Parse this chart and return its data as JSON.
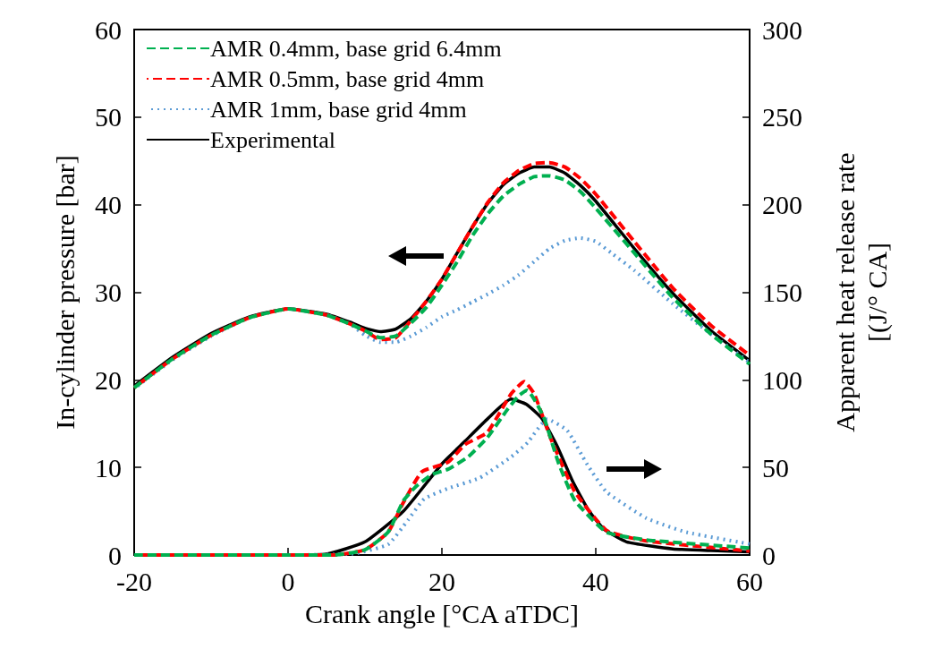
{
  "chart_data": {
    "type": "line",
    "xlabel": "Crank angle [°CA aTDC]",
    "ylabel": "In-cylinder pressure [bar]",
    "y2label": "Apparent heat release rate\n[(J/° CA]",
    "xlim": [
      -20,
      60
    ],
    "xticks": [
      -20,
      0,
      20,
      40,
      60
    ],
    "ylim": [
      0,
      60
    ],
    "yticks": [
      0,
      10,
      20,
      30,
      40,
      50,
      60
    ],
    "y2lim": [
      0,
      300
    ],
    "y2ticks": [
      0,
      50,
      100,
      150,
      200,
      250,
      300
    ],
    "grid": false,
    "legend": "top left",
    "marker": "none",
    "series": [
      {
        "name": "AMR 0.4mm, base grid 6.4mm",
        "color": "#00b050",
        "line_style": "dashed",
        "x": [
          -20,
          -15,
          -10,
          -5,
          0,
          5,
          8,
          10,
          12,
          14,
          16,
          18,
          20,
          22,
          24,
          26,
          28,
          30,
          32,
          34,
          36,
          38,
          40,
          45,
          50,
          55,
          60
        ],
        "values": [
          19.1,
          22.4,
          25.1,
          27.1,
          28.1,
          27.4,
          26.4,
          25.6,
          24.8,
          25,
          26.5,
          28.3,
          30.8,
          33.5,
          36.5,
          39,
          41,
          42.3,
          43.2,
          43.3,
          42.8,
          41.5,
          39.6,
          34.5,
          29.4,
          25.2,
          21.8
        ]
      },
      {
        "name": "AMR 0.5mm, base grid 4mm",
        "color": "#ff0000",
        "line_style": "dashed",
        "x": [
          -20,
          -15,
          -10,
          -5,
          0,
          5,
          8,
          10,
          12,
          14,
          16,
          18,
          20,
          22,
          24,
          26,
          28,
          30,
          32,
          34,
          36,
          38,
          40,
          45,
          50,
          55,
          60
        ],
        "values": [
          19.1,
          22.4,
          25.1,
          27.1,
          28.1,
          27.4,
          26.4,
          25.6,
          24.6,
          24.8,
          26.8,
          29,
          31.5,
          34.5,
          37.5,
          40.3,
          42.5,
          43.9,
          44.7,
          44.8,
          44.3,
          43,
          41.2,
          35.8,
          30.5,
          26.2,
          22.8
        ]
      },
      {
        "name": "AMR 1mm, base grid 4mm",
        "color": "#5b9bd5",
        "line_style": "dotted",
        "x": [
          -20,
          -15,
          -10,
          -5,
          0,
          5,
          8,
          10,
          12,
          14,
          16,
          18,
          20,
          22,
          24,
          26,
          28,
          30,
          32,
          34,
          36,
          38,
          40,
          42,
          45,
          50,
          55,
          60
        ],
        "values": [
          19,
          22.3,
          25,
          27.1,
          28.1,
          27.4,
          26.4,
          25.1,
          24.3,
          24.3,
          25,
          26,
          27.2,
          28,
          28.9,
          29.8,
          30.8,
          32,
          33.5,
          35,
          35.9,
          36.2,
          35.8,
          34.5,
          32.5,
          28.7,
          25.2,
          22
        ]
      },
      {
        "name": "Experimental",
        "color": "#000000",
        "line_style": "solid",
        "x": [
          -20,
          -15,
          -10,
          -5,
          0,
          5,
          8,
          10,
          12,
          14,
          16,
          18,
          20,
          22,
          24,
          26,
          28,
          30,
          32,
          34,
          36,
          38,
          40,
          45,
          50,
          55,
          60
        ],
        "values": [
          19.3,
          22.6,
          25.3,
          27.2,
          28.1,
          27.5,
          26.6,
          25.9,
          25.5,
          25.8,
          27,
          29,
          31.5,
          34.5,
          37.5,
          40.2,
          42.3,
          43.6,
          44.3,
          44.3,
          43.6,
          42.2,
          40.4,
          35,
          29.9,
          25.6,
          22.2
        ]
      },
      {
        "color": "#00b050",
        "line_style": "dashed",
        "axis": "y2",
        "x": [
          -20,
          0,
          6,
          10,
          13,
          15,
          16.6,
          18.7,
          20.8,
          23.4,
          25.9,
          28.5,
          30,
          31.1,
          33.2,
          35.2,
          37.3,
          41.4,
          46.6,
          60
        ],
        "values": [
          0,
          0,
          0,
          3,
          13,
          31,
          39,
          46,
          49,
          56,
          67,
          83,
          91,
          94,
          79,
          52,
          31,
          13,
          8.6,
          4
        ]
      },
      {
        "color": "#ff0000",
        "line_style": "dashed",
        "axis": "y2",
        "x": [
          -20,
          0,
          6,
          10,
          13,
          15,
          17.4,
          20.8,
          23,
          25.9,
          29,
          30.7,
          32,
          34.2,
          37.3,
          41.4,
          46.6,
          60
        ],
        "values": [
          0,
          0,
          0,
          3,
          13,
          30,
          47.5,
          53,
          63,
          70,
          92,
          99,
          92,
          66,
          36,
          14,
          8,
          2.3
        ]
      },
      {
        "color": "#5b9bd5",
        "line_style": "dotted",
        "axis": "y2",
        "x": [
          -20,
          0,
          8.4,
          13,
          15.6,
          17.7,
          20.8,
          24.9,
          29,
          31.1,
          33.7,
          36.3,
          38.9,
          41.4,
          46.6,
          51.8,
          60
        ],
        "values": [
          0,
          0,
          0.7,
          6,
          20,
          32,
          38,
          44,
          56,
          64,
          77.6,
          71,
          51.6,
          36,
          21,
          13,
          6.3
        ]
      },
      {
        "color": "#000000",
        "line_style": "solid",
        "axis": "y2",
        "x": [
          -20,
          0,
          5,
          10,
          15,
          20,
          23,
          26,
          29,
          31,
          33,
          35,
          37,
          39,
          41,
          44,
          50,
          55,
          60
        ],
        "values": [
          0,
          0,
          0.5,
          7.5,
          25,
          52,
          65,
          78,
          89,
          86,
          78,
          62,
          42,
          26,
          15,
          7.5,
          3.5,
          2.5,
          1.8
        ]
      }
    ]
  }
}
